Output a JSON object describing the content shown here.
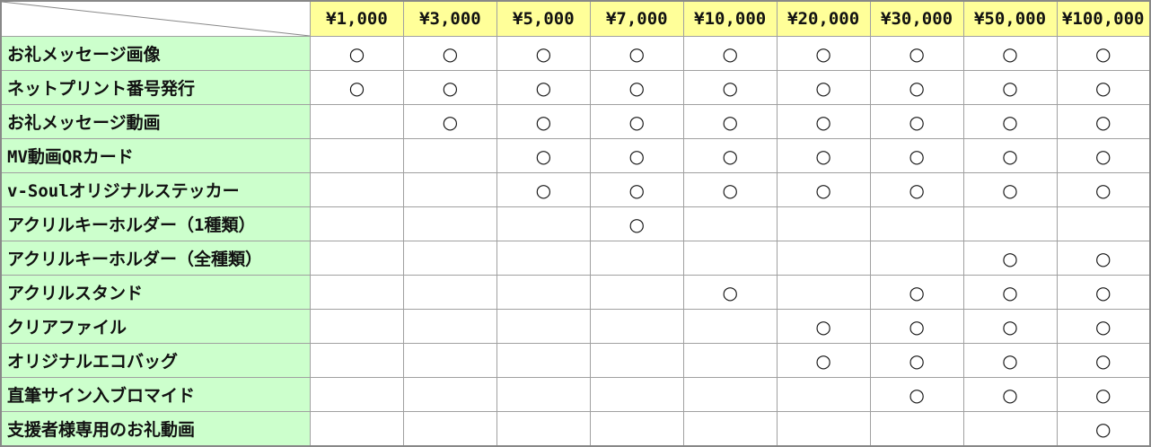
{
  "columns": [
    "¥1,000",
    "¥3,000",
    "¥5,000",
    "¥7,000",
    "¥10,000",
    "¥20,000",
    "¥30,000",
    "¥50,000",
    "¥100,000"
  ],
  "mark_symbol": "○",
  "colors": {
    "header_bg": "#ffff99",
    "label_bg": "#ccffcc",
    "border": "#a0a0a0"
  },
  "rows": [
    {
      "label": "お礼メッセージ画像",
      "marks": [
        1,
        1,
        1,
        1,
        1,
        1,
        1,
        1,
        1
      ]
    },
    {
      "label": "ネットプリント番号発行",
      "marks": [
        1,
        1,
        1,
        1,
        1,
        1,
        1,
        1,
        1
      ]
    },
    {
      "label": "お礼メッセージ動画",
      "marks": [
        0,
        1,
        1,
        1,
        1,
        1,
        1,
        1,
        1
      ]
    },
    {
      "label": "MV動画QRカード",
      "marks": [
        0,
        0,
        1,
        1,
        1,
        1,
        1,
        1,
        1
      ]
    },
    {
      "label": "v-Soulオリジナルステッカー",
      "marks": [
        0,
        0,
        1,
        1,
        1,
        1,
        1,
        1,
        1
      ]
    },
    {
      "label": "アクリルキーホルダー（1種類）",
      "marks": [
        0,
        0,
        0,
        1,
        0,
        0,
        0,
        0,
        0
      ]
    },
    {
      "label": "アクリルキーホルダー（全種類）",
      "marks": [
        0,
        0,
        0,
        0,
        0,
        0,
        0,
        1,
        1
      ]
    },
    {
      "label": "アクリルスタンド",
      "marks": [
        0,
        0,
        0,
        0,
        1,
        0,
        1,
        1,
        1
      ]
    },
    {
      "label": "クリアファイル",
      "marks": [
        0,
        0,
        0,
        0,
        0,
        1,
        1,
        1,
        1
      ]
    },
    {
      "label": "オリジナルエコバッグ",
      "marks": [
        0,
        0,
        0,
        0,
        0,
        1,
        1,
        1,
        1
      ]
    },
    {
      "label": "直筆サイン入ブロマイド",
      "marks": [
        0,
        0,
        0,
        0,
        0,
        0,
        1,
        1,
        1
      ]
    },
    {
      "label": "支援者様専用のお礼動画",
      "marks": [
        0,
        0,
        0,
        0,
        0,
        0,
        0,
        0,
        1
      ]
    }
  ]
}
